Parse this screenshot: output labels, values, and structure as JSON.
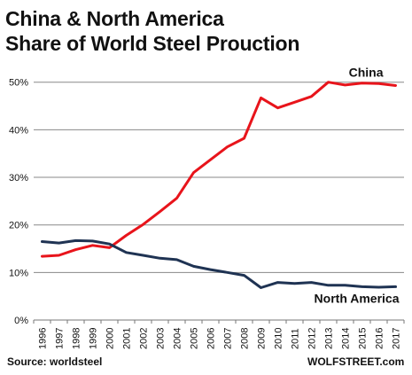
{
  "header": {
    "title_line1": "China & North America",
    "title_line2": "Share of World Steel Proуction"
  },
  "footer": {
    "source": "Source: worldsteel",
    "brand": "WOLFSTREET.com"
  },
  "chart_data": {
    "type": "line",
    "title": "China & North America Share of World Steel Proction",
    "x": [
      "1996",
      "1997",
      "1998",
      "1999",
      "2000",
      "2001",
      "2002",
      "2003",
      "2004",
      "2005",
      "2006",
      "2007",
      "2008",
      "2009",
      "2010",
      "2011",
      "2012",
      "2013",
      "2014",
      "2015",
      "2016",
      "2017"
    ],
    "yticks": [
      "0%",
      "10%",
      "20%",
      "30%",
      "40%",
      "50%"
    ],
    "ylim": [
      0,
      52
    ],
    "grid": "horizontal",
    "series": [
      {
        "name": "China",
        "color": "#e8141b",
        "values": [
          13.4,
          13.6,
          14.8,
          15.7,
          15.2,
          17.8,
          20.1,
          22.8,
          25.6,
          31.0,
          33.7,
          36.4,
          38.2,
          46.7,
          44.6,
          45.8,
          47.0,
          50.0,
          49.4,
          49.8,
          49.7,
          49.3
        ]
      },
      {
        "name": "North America",
        "color": "#1f3353",
        "values": [
          16.5,
          16.2,
          16.7,
          16.6,
          16.0,
          14.2,
          13.6,
          13.0,
          12.7,
          11.3,
          10.6,
          10.0,
          9.4,
          6.8,
          7.9,
          7.7,
          7.9,
          7.3,
          7.3,
          7.0,
          6.9,
          7.0
        ]
      }
    ]
  }
}
